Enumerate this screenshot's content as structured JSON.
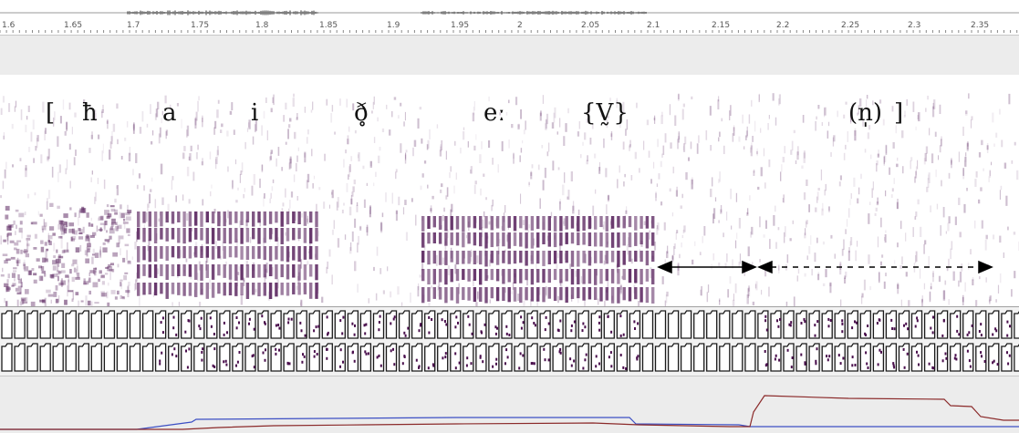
{
  "ruler": {
    "ticks": [
      "1.6",
      "1.65",
      "1.7",
      "1.75",
      "1.8",
      "1.85",
      "1.9",
      "1.95",
      "2",
      "2.05",
      "2.1",
      "2.15",
      "2.2",
      "2.25",
      "2.3",
      "2.35"
    ]
  },
  "transcription": {
    "bracket_open": "[",
    "seg_1": "ħ",
    "seg_2": "a",
    "seg_3": "i",
    "seg_4": "ð̥",
    "seg_5": "eː",
    "seg_6": "{V̰}",
    "seg_7": "(n̩)",
    "bracket_close": "]"
  },
  "colors": {
    "spectrogram_ink": "#5e2a63",
    "waveform": "#333333",
    "f0_blue": "#3c4fc4",
    "intensity_red": "#8b2a2a",
    "panel_gray": "#ececec"
  }
}
